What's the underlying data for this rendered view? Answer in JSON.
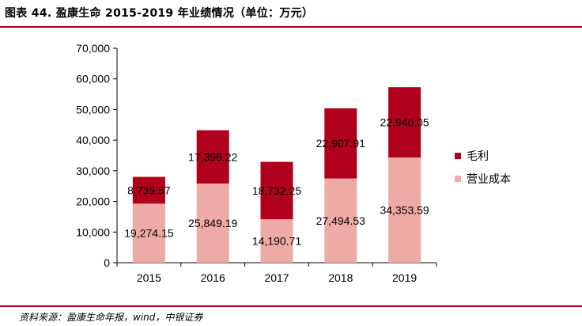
{
  "figure": {
    "title": "图表 44. 盈康生命 2015-2019 年业绩情况（单位：万元）",
    "source": "资料来源：盈康生命年报，wind，中银证券"
  },
  "chart_data": {
    "type": "bar",
    "stacked": true,
    "categories": [
      "2015",
      "2016",
      "2017",
      "2018",
      "2019"
    ],
    "series": [
      {
        "name": "营业成本",
        "color": "#eeaaa6",
        "values": [
          19274.15,
          25849.19,
          14190.71,
          27494.53,
          34353.59
        ],
        "labels": [
          "19,274.15",
          "25,849.19",
          "14,190.71",
          "27,494.53",
          "34,353.59"
        ]
      },
      {
        "name": "毛利",
        "color": "#b0001e",
        "values": [
          8739.57,
          17396.22,
          18732.25,
          22907.91,
          22940.05
        ],
        "labels": [
          "8,739.57",
          "17,396.22",
          "18,732.25",
          "22,907.91",
          "22,940.05"
        ]
      }
    ],
    "ylim": [
      0,
      70000
    ],
    "yticks": [
      0,
      10000,
      20000,
      30000,
      40000,
      50000,
      60000,
      70000
    ],
    "ytick_labels": [
      "0",
      "10,000",
      "20,000",
      "30,000",
      "40,000",
      "50,000",
      "60,000",
      "70,000"
    ],
    "legend": {
      "placement": "right",
      "order": [
        "毛利",
        "营业成本"
      ]
    },
    "grid": false,
    "xlabel": "",
    "ylabel": ""
  }
}
